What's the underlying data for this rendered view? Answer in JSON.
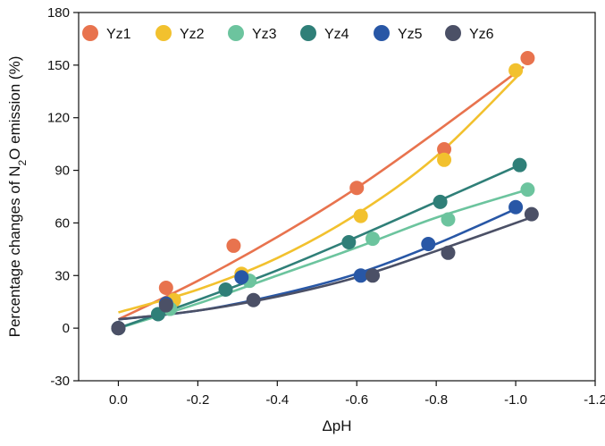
{
  "chart_data": {
    "type": "scatter",
    "xlabel": "ΔpH",
    "ylabel_parts": [
      "Percentage changes of N",
      "2",
      "O emission (%)"
    ],
    "xlim": [
      0.1,
      -1.2
    ],
    "ylim": [
      -30,
      180
    ],
    "x_ticks": [
      0.0,
      -0.2,
      -0.4,
      -0.6,
      -0.8,
      -1.0,
      -1.2
    ],
    "x_tick_labels": [
      "0.0",
      "-0.2",
      "-0.4",
      "-0.6",
      "-0.8",
      "-1.0",
      "-1.2"
    ],
    "y_ticks": [
      -30,
      0,
      30,
      60,
      90,
      120,
      150,
      180
    ],
    "y_tick_labels": [
      "-30",
      "0",
      "30",
      "60",
      "90",
      "120",
      "150",
      "180"
    ],
    "legend_position": "top, horizontal",
    "series": [
      {
        "name": "Yz1",
        "color": "#E8734E",
        "points": [
          [
            0.0,
            0
          ],
          [
            -0.12,
            23
          ],
          [
            -0.29,
            47
          ],
          [
            -0.6,
            80
          ],
          [
            -0.82,
            102
          ],
          [
            -1.03,
            154
          ]
        ],
        "fit": [
          [
            0.0,
            5
          ],
          [
            -0.2,
            27
          ],
          [
            -0.4,
            52
          ],
          [
            -0.6,
            80
          ],
          [
            -0.8,
            112
          ],
          [
            -1.02,
            149
          ]
        ]
      },
      {
        "name": "Yz2",
        "color": "#F2C12E",
        "points": [
          [
            0.0,
            0
          ],
          [
            -0.14,
            16
          ],
          [
            -0.31,
            31
          ],
          [
            -0.61,
            64
          ],
          [
            -0.82,
            96
          ],
          [
            -1.0,
            147
          ]
        ],
        "fit": [
          [
            0.0,
            9
          ],
          [
            -0.2,
            22
          ],
          [
            -0.4,
            40
          ],
          [
            -0.6,
            65
          ],
          [
            -0.8,
            98
          ],
          [
            -1.01,
            145
          ]
        ]
      },
      {
        "name": "Yz3",
        "color": "#6CC49E",
        "points": [
          [
            0.0,
            0
          ],
          [
            -0.13,
            11
          ],
          [
            -0.33,
            27
          ],
          [
            -0.64,
            51
          ],
          [
            -0.83,
            62
          ],
          [
            -1.03,
            79
          ]
        ],
        "fit": [
          [
            0.0,
            0
          ],
          [
            -0.2,
            14
          ],
          [
            -0.4,
            30
          ],
          [
            -0.6,
            46
          ],
          [
            -0.8,
            63
          ],
          [
            -1.03,
            79
          ]
        ]
      },
      {
        "name": "Yz4",
        "color": "#2F7F78",
        "points": [
          [
            0.0,
            0
          ],
          [
            -0.1,
            8
          ],
          [
            -0.27,
            22
          ],
          [
            -0.58,
            49
          ],
          [
            -0.81,
            72
          ],
          [
            -1.01,
            93
          ]
        ],
        "fit": [
          [
            0.0,
            0
          ],
          [
            -0.2,
            16
          ],
          [
            -0.4,
            33
          ],
          [
            -0.6,
            52
          ],
          [
            -0.8,
            72
          ],
          [
            -1.01,
            93
          ]
        ]
      },
      {
        "name": "Yz5",
        "color": "#2857A6",
        "points": [
          [
            0.0,
            0
          ],
          [
            -0.12,
            14
          ],
          [
            -0.31,
            29
          ],
          [
            -0.61,
            30
          ],
          [
            -0.78,
            48
          ],
          [
            -1.0,
            69
          ]
        ],
        "fit": [
          [
            0.0,
            5
          ],
          [
            -0.2,
            10
          ],
          [
            -0.4,
            19
          ],
          [
            -0.6,
            31
          ],
          [
            -0.8,
            48
          ],
          [
            -1.01,
            69
          ]
        ]
      },
      {
        "name": "Yz6",
        "color": "#4B5066",
        "points": [
          [
            0.0,
            0
          ],
          [
            -0.12,
            13
          ],
          [
            -0.34,
            16
          ],
          [
            -0.64,
            30
          ],
          [
            -0.83,
            43
          ],
          [
            -1.04,
            65
          ]
        ],
        "fit": [
          [
            0.0,
            5
          ],
          [
            -0.2,
            10
          ],
          [
            -0.4,
            18
          ],
          [
            -0.6,
            29
          ],
          [
            -0.8,
            44
          ],
          [
            -1.05,
            64
          ]
        ]
      }
    ]
  }
}
